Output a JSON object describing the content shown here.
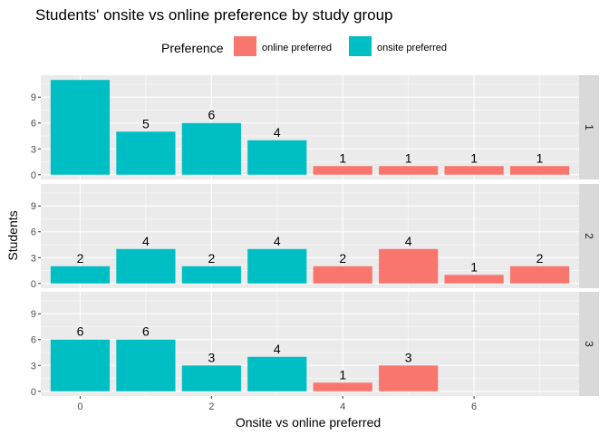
{
  "chart_data": {
    "type": "bar",
    "title": "Students' onsite vs online preference by study group",
    "xlabel": "Onsite vs online preferred",
    "ylabel": "Students",
    "xlim": [
      -0.6,
      7.6
    ],
    "ylim": [
      -0.55,
      11.55
    ],
    "x_ticks": [
      0,
      2,
      4,
      6
    ],
    "y_ticks": [
      0,
      3,
      6,
      9
    ],
    "grid": true,
    "legend": {
      "title": "Preference",
      "position": "top",
      "entries": [
        {
          "label": "online preferred",
          "color": "#F8766D"
        },
        {
          "label": "onsite preferred",
          "color": "#00BFC4"
        }
      ]
    },
    "panels": [
      {
        "strip_label": "1",
        "bars": [
          {
            "x": 0,
            "value": 11,
            "label": "",
            "preference": "onsite preferred"
          },
          {
            "x": 1,
            "value": 5,
            "label": "5",
            "preference": "onsite preferred"
          },
          {
            "x": 2,
            "value": 6,
            "label": "6",
            "preference": "onsite preferred"
          },
          {
            "x": 3,
            "value": 4,
            "label": "4",
            "preference": "onsite preferred"
          },
          {
            "x": 4,
            "value": 1,
            "label": "1",
            "preference": "online preferred"
          },
          {
            "x": 5,
            "value": 1,
            "label": "1",
            "preference": "online preferred"
          },
          {
            "x": 6,
            "value": 1,
            "label": "1",
            "preference": "online preferred"
          },
          {
            "x": 7,
            "value": 1,
            "label": "1",
            "preference": "online preferred"
          }
        ]
      },
      {
        "strip_label": "2",
        "bars": [
          {
            "x": 0,
            "value": 2,
            "label": "2",
            "preference": "onsite preferred"
          },
          {
            "x": 1,
            "value": 4,
            "label": "4",
            "preference": "onsite preferred"
          },
          {
            "x": 2,
            "value": 2,
            "label": "2",
            "preference": "onsite preferred"
          },
          {
            "x": 3,
            "value": 4,
            "label": "4",
            "preference": "onsite preferred"
          },
          {
            "x": 4,
            "value": 2,
            "label": "2",
            "preference": "online preferred"
          },
          {
            "x": 5,
            "value": 4,
            "label": "4",
            "preference": "online preferred"
          },
          {
            "x": 6,
            "value": 1,
            "label": "1",
            "preference": "online preferred"
          },
          {
            "x": 7,
            "value": 2,
            "label": "2",
            "preference": "online preferred"
          }
        ]
      },
      {
        "strip_label": "3",
        "bars": [
          {
            "x": 0,
            "value": 6,
            "label": "6",
            "preference": "onsite preferred"
          },
          {
            "x": 1,
            "value": 6,
            "label": "6",
            "preference": "onsite preferred"
          },
          {
            "x": 2,
            "value": 3,
            "label": "3",
            "preference": "onsite preferred"
          },
          {
            "x": 3,
            "value": 4,
            "label": "4",
            "preference": "onsite preferred"
          },
          {
            "x": 4,
            "value": 1,
            "label": "1",
            "preference": "online preferred"
          },
          {
            "x": 5,
            "value": 3,
            "label": "3",
            "preference": "online preferred"
          }
        ]
      }
    ]
  }
}
